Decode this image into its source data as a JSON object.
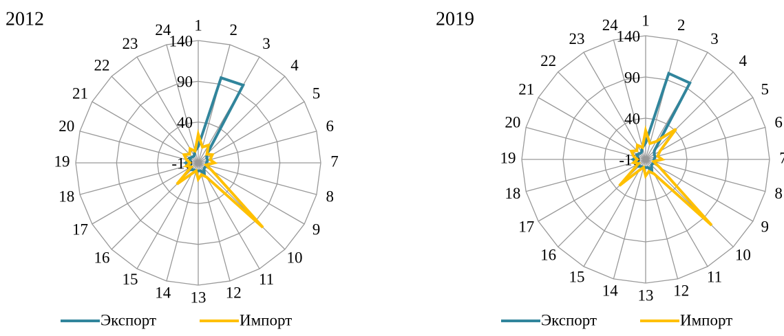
{
  "chart_data": [
    {
      "type": "radar",
      "title": "2012",
      "categories": [
        "1",
        "2",
        "3",
        "4",
        "5",
        "6",
        "7",
        "8",
        "9",
        "10",
        "11",
        "12",
        "13",
        "14",
        "15",
        "16",
        "17",
        "18",
        "19",
        "20",
        "21",
        "22",
        "23",
        "24"
      ],
      "ylim": [
        -10,
        140
      ],
      "yticks": [
        -10,
        40,
        90,
        140
      ],
      "grid": true,
      "legend": "bottom",
      "series": [
        {
          "name": "Экспорт",
          "color": "#31859c",
          "values": [
            10,
            98,
            100,
            5,
            2,
            2,
            0,
            2,
            0,
            0,
            5,
            0,
            0,
            0,
            0,
            2,
            0,
            0,
            5,
            0,
            2,
            0,
            0,
            5
          ]
        },
        {
          "name": "Импорт",
          "color": "#ffc000",
          "values": [
            25,
            10,
            15,
            5,
            10,
            5,
            10,
            0,
            10,
            102,
            10,
            5,
            10,
            0,
            5,
            27,
            0,
            5,
            0,
            5,
            10,
            5,
            10,
            5
          ]
        }
      ]
    },
    {
      "type": "radar",
      "title": "2019",
      "categories": [
        "1",
        "2",
        "3",
        "4",
        "5",
        "6",
        "7",
        "8",
        "9",
        "10",
        "11",
        "12",
        "13",
        "14",
        "15",
        "16",
        "17",
        "18",
        "19",
        "20",
        "21",
        "22",
        "23",
        "24"
      ],
      "ylim": [
        -10,
        140
      ],
      "yticks": [
        -10,
        40,
        90,
        140
      ],
      "grid": true,
      "legend": "bottom",
      "series": [
        {
          "name": "Экспорт",
          "color": "#31859c",
          "values": [
            10,
            98,
            97,
            5,
            2,
            2,
            0,
            2,
            0,
            0,
            5,
            0,
            0,
            0,
            0,
            2,
            0,
            0,
            5,
            0,
            2,
            0,
            0,
            5
          ]
        },
        {
          "name": "Импорт",
          "color": "#ffc000",
          "values": [
            25,
            10,
            15,
            42,
            10,
            5,
            10,
            0,
            10,
            103,
            10,
            5,
            10,
            0,
            5,
            35,
            0,
            5,
            0,
            5,
            10,
            5,
            10,
            5
          ]
        }
      ]
    }
  ]
}
